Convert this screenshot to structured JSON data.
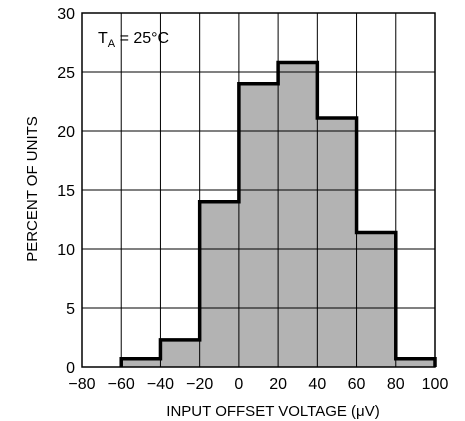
{
  "chart_data": {
    "type": "bar",
    "title": "",
    "xlabel": "INPUT OFFSET VOLTAGE (μV)",
    "ylabel": "PERCENT OF UNITS",
    "annotation": {
      "main": "T",
      "sub": "A",
      "rest": " = 25°C"
    },
    "xlim": [
      -80,
      100
    ],
    "ylim": [
      0,
      30
    ],
    "x_ticks": [
      -80,
      -60,
      -40,
      -20,
      0,
      20,
      40,
      60,
      80,
      100
    ],
    "x_tick_labels": [
      "−80",
      "−60",
      "−40",
      "−20",
      "0",
      "20",
      "40",
      "60",
      "80",
      "100"
    ],
    "y_ticks": [
      0,
      5,
      10,
      15,
      20,
      25,
      30
    ],
    "y_tick_labels": [
      "0",
      "5",
      "10",
      "15",
      "20",
      "25",
      "30"
    ],
    "grid": true,
    "bins": [
      {
        "x0": -60,
        "x1": -40,
        "value": 0.7
      },
      {
        "x0": -40,
        "x1": -20,
        "value": 2.3
      },
      {
        "x0": -20,
        "x1": 0,
        "value": 14
      },
      {
        "x0": 0,
        "x1": 20,
        "value": 24
      },
      {
        "x0": 20,
        "x1": 40,
        "value": 25.8
      },
      {
        "x0": 40,
        "x1": 60,
        "value": 21.1
      },
      {
        "x0": 60,
        "x1": 80,
        "value": 11.4
      },
      {
        "x0": 80,
        "x1": 100,
        "value": 0.7
      }
    ],
    "colors": {
      "bar_fill": "#b3b3b3",
      "outline": "#000000",
      "grid": "#000000"
    }
  }
}
